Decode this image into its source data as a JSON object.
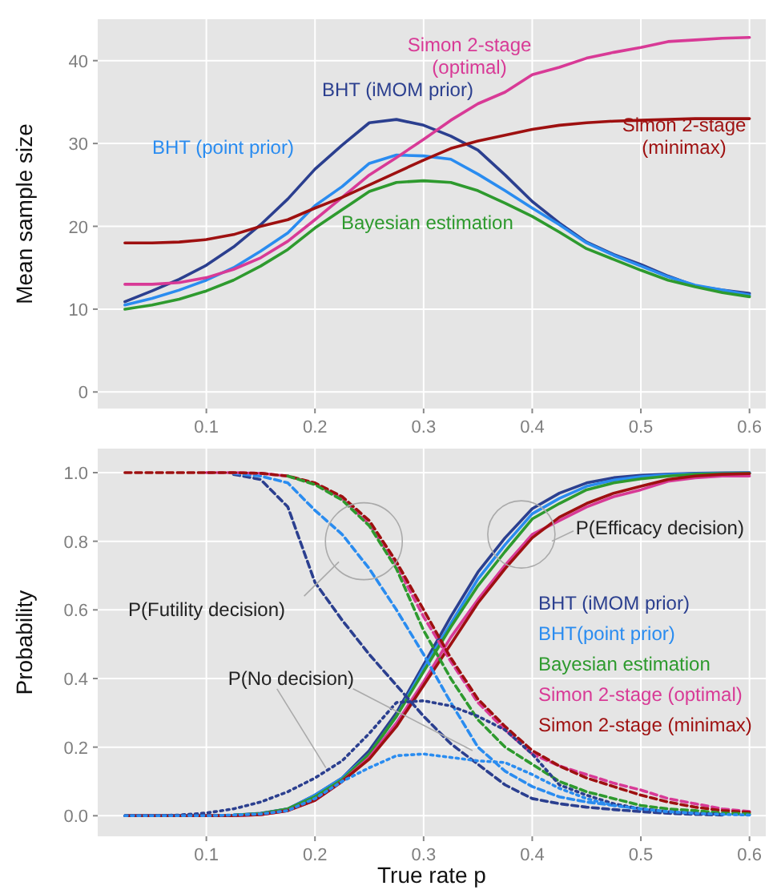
{
  "chart_data": [
    {
      "type": "line",
      "ylabel": "Mean sample size",
      "x": [
        0.025,
        0.05,
        0.075,
        0.1,
        0.125,
        0.15,
        0.175,
        0.2,
        0.225,
        0.25,
        0.275,
        0.3,
        0.325,
        0.35,
        0.375,
        0.4,
        0.425,
        0.45,
        0.475,
        0.5,
        0.525,
        0.55,
        0.575,
        0.6
      ],
      "xlim": [
        0,
        0.615
      ],
      "xticks": [
        0.1,
        0.2,
        0.3,
        0.4,
        0.5,
        0.6
      ],
      "ylim": [
        -2,
        45
      ],
      "yticks": [
        0,
        10,
        20,
        30,
        40
      ],
      "grid": true,
      "line_style": "solid",
      "marker": "none",
      "series": [
        {
          "name": "BHT (iMOM prior)",
          "color": "#2b3f8f",
          "values": [
            10.9,
            12.2,
            13.6,
            15.3,
            17.5,
            20.2,
            23.3,
            26.9,
            29.8,
            32.5,
            32.9,
            32.2,
            30.9,
            29.2,
            26.2,
            23,
            20.4,
            18.1,
            16.6,
            15.4,
            14,
            12.8,
            12.3,
            11.9
          ]
        },
        {
          "name": "BHT (point prior)",
          "color": "#2a8cf0",
          "values": [
            10.5,
            11.3,
            12.3,
            13.5,
            15,
            17,
            19.2,
            22.5,
            24.8,
            27.6,
            28.6,
            28.5,
            28.1,
            26.3,
            24.3,
            22.2,
            20.2,
            18,
            16.5,
            15.2,
            13.9,
            12.9,
            12.3,
            11.7
          ]
        },
        {
          "name": "Bayesian estimation",
          "color": "#2e9a2e",
          "values": [
            10,
            10.5,
            11.2,
            12.2,
            13.5,
            15.2,
            17.2,
            19.8,
            22,
            24.2,
            25.3,
            25.5,
            25.3,
            24.3,
            22.8,
            21.2,
            19.3,
            17.3,
            16,
            14.7,
            13.5,
            12.7,
            12,
            11.5
          ]
        },
        {
          "name": "Simon 2-stage\n(optimal)",
          "color": "#d83a96",
          "values": [
            13,
            13,
            13.2,
            13.8,
            14.8,
            16.2,
            18.2,
            20.8,
            23.5,
            26.2,
            28.3,
            30.5,
            32.8,
            34.8,
            36.2,
            38.3,
            39.2,
            40.3,
            41,
            41.6,
            42.3,
            42.5,
            42.7,
            42.8
          ]
        },
        {
          "name": "Simon 2-stage\n(minimax)",
          "color": "#9e1010",
          "values": [
            18,
            18,
            18.1,
            18.4,
            19,
            20,
            20.8,
            22.2,
            23.5,
            25,
            26.5,
            28,
            29.4,
            30.3,
            31,
            31.7,
            32.2,
            32.5,
            32.7,
            32.8,
            32.9,
            33,
            33,
            33
          ]
        }
      ]
    },
    {
      "type": "line",
      "xlabel": "True rate p",
      "ylabel": "Probability",
      "x": [
        0.025,
        0.05,
        0.075,
        0.1,
        0.125,
        0.15,
        0.175,
        0.2,
        0.225,
        0.25,
        0.275,
        0.3,
        0.325,
        0.35,
        0.375,
        0.4,
        0.425,
        0.45,
        0.475,
        0.5,
        0.525,
        0.55,
        0.575,
        0.6
      ],
      "xlim": [
        0,
        0.615
      ],
      "xticks": [
        0.1,
        0.2,
        0.3,
        0.4,
        0.5,
        0.6
      ],
      "ylim": [
        -0.06,
        1.07
      ],
      "yticks": [
        {
          "value": 0,
          "label": "0.0"
        },
        0.2,
        0.4,
        0.6,
        0.8,
        {
          "value": 1,
          "label": "1.0"
        }
      ],
      "grid": true,
      "legend": "right",
      "marker": "none",
      "annotations": [
        "P(Futility decision)",
        {
          "text": "P(Efficacy decision)",
          "x": 0.39,
          "y": 0.82
        },
        {
          "text": "P(No decision)",
          "x": 0.21,
          "y": 0.14
        }
      ],
      "series": [
        {
          "name": "BHT (iMOM prior)",
          "color": "#2b3f8f",
          "line_style": "solid",
          "values": [
            0,
            0,
            0,
            0,
            0.002,
            0.007,
            0.02,
            0.06,
            0.11,
            0.19,
            0.3,
            0.44,
            0.58,
            0.71,
            0.81,
            0.895,
            0.94,
            0.97,
            0.985,
            0.992,
            0.996,
            0.998,
            0.999,
            1
          ]
        },
        {
          "name": "BHT(point prior)",
          "color": "#2a8cf0",
          "line_style": "solid",
          "values": [
            0,
            0,
            0,
            0,
            0.002,
            0.006,
            0.02,
            0.06,
            0.11,
            0.18,
            0.29,
            0.43,
            0.56,
            0.69,
            0.79,
            0.88,
            0.925,
            0.96,
            0.978,
            0.988,
            0.994,
            0.997,
            0.998,
            0.999
          ]
        },
        {
          "name": "Bayesian estimation",
          "color": "#2e9a2e",
          "line_style": "solid",
          "values": [
            null,
            null,
            null,
            0,
            0.002,
            0.006,
            0.02,
            0.055,
            0.105,
            0.18,
            0.29,
            0.42,
            0.55,
            0.67,
            0.77,
            0.865,
            0.91,
            0.95,
            0.97,
            0.982,
            0.99,
            0.995,
            0.997,
            0.998
          ]
        },
        {
          "name": "Simon 2-stage (optimal)",
          "color": "#d83a96",
          "line_style": "solid",
          "values": [
            null,
            null,
            null,
            0,
            0,
            0.003,
            0.015,
            0.045,
            0.1,
            0.17,
            0.27,
            0.39,
            0.52,
            0.63,
            0.73,
            0.82,
            0.86,
            0.9,
            0.93,
            0.95,
            0.975,
            0.985,
            0.99,
            0.99
          ]
        },
        {
          "name": "Simon 2-stage (minimax)",
          "color": "#9e1010",
          "line_style": "solid",
          "values": [
            0,
            0,
            0,
            0,
            0,
            0.003,
            0.015,
            0.045,
            0.1,
            0.165,
            0.26,
            0.38,
            0.5,
            0.62,
            0.72,
            0.81,
            0.87,
            0.91,
            0.94,
            0.96,
            0.98,
            0.99,
            0.995,
            0.997
          ]
        },
        {
          "color": "#2b3f8f",
          "line_style": "dashed",
          "values": [
            null,
            null,
            null,
            null,
            0.995,
            0.98,
            0.9,
            0.68,
            0.57,
            0.47,
            0.38,
            0.29,
            0.21,
            0.15,
            0.09,
            0.05,
            0.035,
            0.025,
            0.018,
            0.012,
            0.007,
            0.004,
            0.002,
            null
          ]
        },
        {
          "color": "#2a8cf0",
          "line_style": "dashed",
          "values": [
            null,
            null,
            null,
            null,
            0.998,
            0.99,
            0.97,
            0.89,
            0.82,
            0.72,
            0.6,
            0.47,
            0.33,
            0.2,
            0.13,
            0.085,
            0.055,
            0.04,
            0.03,
            0.02,
            0.012,
            0.008,
            0.005,
            0.003
          ]
        },
        {
          "color": "#d83a96",
          "line_style": "dashed",
          "values": [
            null,
            null,
            null,
            1,
            1,
            0.998,
            0.99,
            0.968,
            0.925,
            0.85,
            0.73,
            0.58,
            0.45,
            0.33,
            0.25,
            0.18,
            0.145,
            0.12,
            0.095,
            0.075,
            0.05,
            0.035,
            0.02,
            0.012
          ]
        },
        {
          "color": "#9e1010",
          "line_style": "dashed",
          "values": [
            1,
            1,
            1,
            1,
            1,
            0.998,
            0.99,
            0.97,
            0.93,
            0.86,
            0.74,
            0.6,
            0.46,
            0.34,
            0.26,
            0.19,
            0.145,
            0.11,
            0.085,
            0.06,
            0.04,
            0.025,
            0.015,
            0.01
          ]
        },
        {
          "color": "#2e9a2e",
          "line_style": "dashed",
          "values": [
            null,
            null,
            null,
            null,
            null,
            null,
            0.99,
            0.965,
            0.92,
            0.845,
            0.72,
            0.54,
            0.4,
            0.28,
            0.2,
            0.15,
            0.1,
            0.07,
            0.05,
            0.03,
            0.02,
            0.015,
            0.008,
            0.005
          ]
        },
        {
          "color": "#2b3f8f",
          "line_style": "dotted",
          "values": [
            0,
            0,
            0.002,
            0.008,
            0.02,
            0.04,
            0.07,
            0.11,
            0.16,
            0.24,
            0.33,
            0.335,
            0.32,
            0.29,
            0.25,
            0.18,
            0.09,
            0.06,
            0.035,
            0.02,
            0.012,
            0.007,
            0.004,
            null
          ]
        },
        {
          "color": "#2a8cf0",
          "line_style": "dotted",
          "values": [
            0,
            0,
            0,
            0,
            0.002,
            0.005,
            0.015,
            0.05,
            0.1,
            0.14,
            0.175,
            0.18,
            0.17,
            0.16,
            0.155,
            0.12,
            0.08,
            0.05,
            0.03,
            0.02,
            0.012,
            0.007,
            0.004,
            0.002
          ]
        }
      ]
    }
  ]
}
